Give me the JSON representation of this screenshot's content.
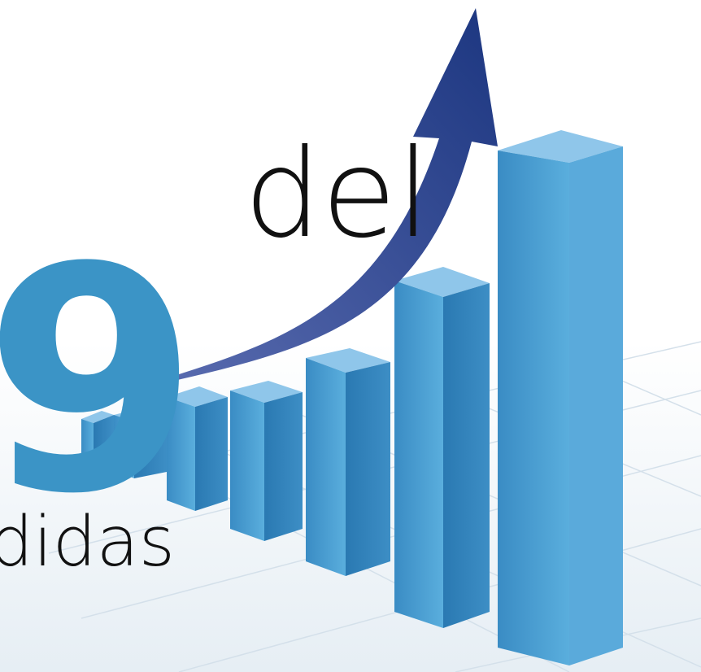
{
  "headline": {
    "word": "del",
    "number": "9",
    "tail": "ndidas"
  }
}
